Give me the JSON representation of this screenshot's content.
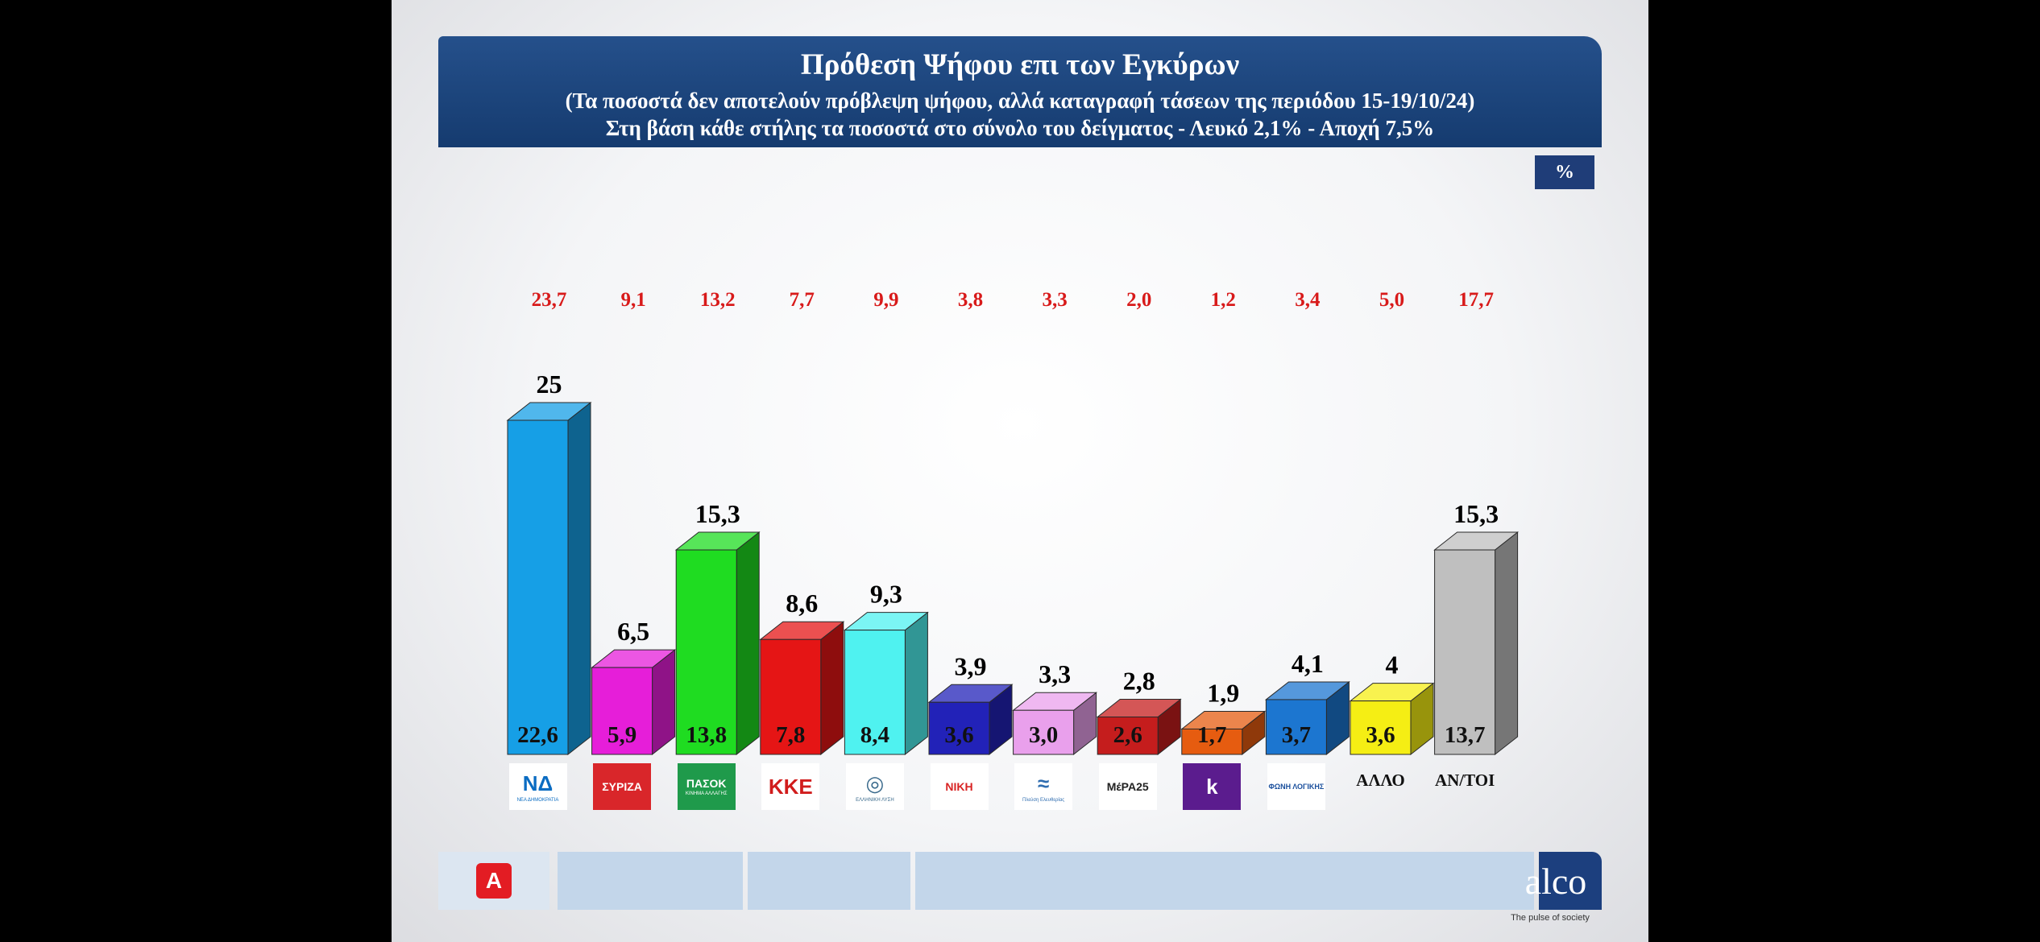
{
  "header": {
    "title": "Πρόθεση Ψήφου επι των Εγκύρων",
    "subtitle1": "(Τα ποσοστά δεν αποτελούν πρόβλεψη ψήφου, αλλά καταγραφή τάσεων της περιόδου  15-19/10/24)",
    "subtitle2": "Στη βάση κάθε στήλης τα ποσοστά στο σύνολο του δείγματος - Λευκό 2,1% - Αποχή 7,5%",
    "unit_badge": "%"
  },
  "chart_data": {
    "type": "bar",
    "title": "Πρόθεση Ψήφου επι των Εγκύρων",
    "categories": [
      "ΝΔ",
      "ΣΥΡΙΖΑ",
      "ΠΑΣΟΚ",
      "ΚΚΕ",
      "Ελληνική Λύση",
      "ΝΙΚΗ",
      "Πλεύση Ελευθερίας",
      "ΜέΡΑ25",
      "Κίνημα Δημοκρατίας",
      "Φωνή Λογικής",
      "ΑΛΛΟ",
      "ΑΝ/ΤΟΙ"
    ],
    "series": [
      {
        "values": [
          25,
          6.5,
          15.3,
          8.6,
          9.3,
          3.9,
          3.3,
          2.8,
          1.9,
          4.1,
          4,
          15.3
        ],
        "labels": [
          "25",
          "6,5",
          "15,3",
          "8,6",
          "9,3",
          "3,9",
          "3,3",
          "2,8",
          "1,9",
          "4,1",
          "4",
          "15,3"
        ]
      },
      {
        "values": [
          22.6,
          5.9,
          13.8,
          7.8,
          8.4,
          3.6,
          3.0,
          2.6,
          1.7,
          3.7,
          3.6,
          13.7
        ],
        "labels": [
          "22,6",
          "5,9",
          "13,8",
          "7,8",
          "8,4",
          "3,6",
          "3,0",
          "2,6",
          "1,7",
          "3,7",
          "3,6",
          "13,7"
        ]
      },
      {
        "values": [
          23.7,
          9.1,
          13.2,
          7.7,
          9.9,
          3.8,
          3.3,
          2.0,
          1.2,
          3.4,
          5.0,
          17.7
        ],
        "labels": [
          "23,7",
          "9,1",
          "13,2",
          "7,7",
          "9,9",
          "3,8",
          "3,3",
          "2,0",
          "1,2",
          "3,4",
          "5,0",
          "17,7"
        ]
      }
    ],
    "colors": {
      "front": [
        "#169fe6",
        "#e61ed9",
        "#1fdc21",
        "#e51515",
        "#4ff2f0",
        "#2222b8",
        "#e9a0ec",
        "#c51d1d",
        "#e65c10",
        "#1c76d0",
        "#f5ee14",
        "#bfbfbf"
      ],
      "top_value_text": "#000000",
      "reference_value_text": "#d81a1a"
    },
    "grid": false,
    "legend": "none"
  },
  "logos": [
    {
      "text": "ΝΔ",
      "sub": "ΝΕΑ ΔΗΜΟΚΡΑΤΙΑ",
      "bg": "#ffffff",
      "fg": "#0a6cc2"
    },
    {
      "text": "ΣΥΡΙΖΑ",
      "sub": "",
      "bg": "#d9262a",
      "fg": "#ffffff"
    },
    {
      "text": "ΠΑΣΟΚ",
      "sub": "ΚΙΝΗΜΑ ΑΛΛΑΓΗΣ",
      "bg": "#1f9a4b",
      "fg": "#ffffff"
    },
    {
      "text": "ΚΚΕ",
      "sub": "",
      "bg": "#ffffff",
      "fg": "#d11c1c"
    },
    {
      "text": "◎",
      "sub": "ΕΛΛΗΝΙΚΗ ΛΥΣΗ",
      "bg": "#ffffff",
      "fg": "#3a6a8c"
    },
    {
      "text": "ΝΙΚΗ",
      "sub": "",
      "bg": "#ffffff",
      "fg": "#d82323"
    },
    {
      "text": "≈",
      "sub": "Πλεύση Ελευθερίας",
      "bg": "#ffffff",
      "fg": "#2f6db0"
    },
    {
      "text": "ΜέΡΑ25",
      "sub": "",
      "bg": "#ffffff",
      "fg": "#222222"
    },
    {
      "text": "k",
      "sub": "",
      "bg": "#5b1c8e",
      "fg": "#ffffff"
    },
    {
      "text": "ΦΩΝΗ ΛΟΓΙΚΗΣ",
      "sub": "",
      "bg": "#ffffff",
      "fg": "#1a4f9c"
    },
    {
      "text": "ΑΛΛΟ",
      "sub": "",
      "bg": "transparent",
      "fg": "#111111"
    },
    {
      "text": "ΑΝ/ΤΟΙ",
      "sub": "",
      "bg": "transparent",
      "fg": "#111111"
    }
  ],
  "footer": {
    "brand": "alco",
    "tagline": "The pulse of society",
    "channel_logo": "Α"
  }
}
